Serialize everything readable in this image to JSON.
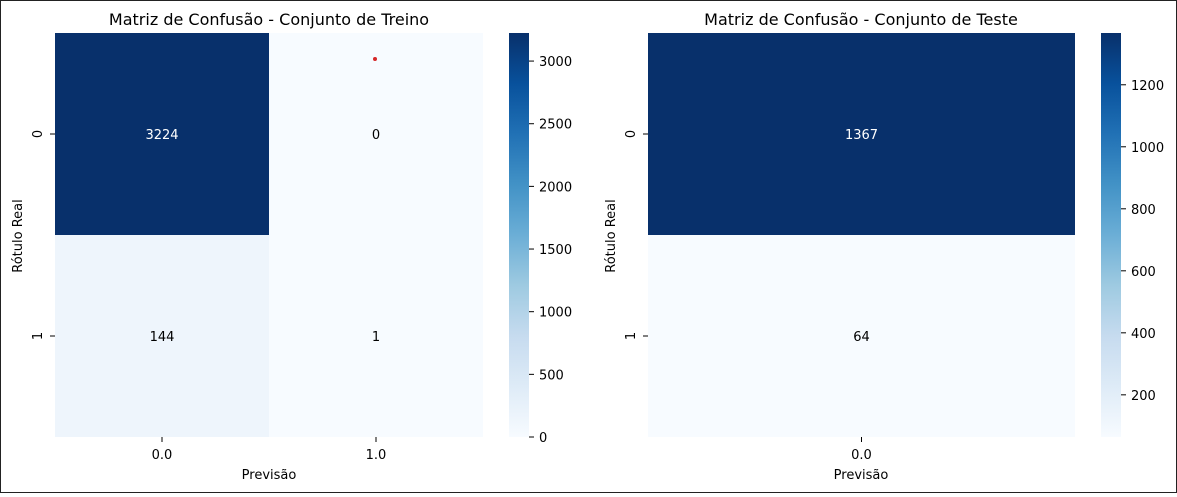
{
  "chart_data": [
    {
      "type": "heatmap",
      "title": "Matriz de Confusão - Conjunto de Treino",
      "xlabel": "Previsão",
      "ylabel": "Rótulo Real",
      "x_categories": [
        "0.0",
        "1.0"
      ],
      "y_categories": [
        "0",
        "1"
      ],
      "values": [
        [
          3224,
          0
        ],
        [
          144,
          1
        ]
      ],
      "cell_labels": [
        [
          "3224",
          "0"
        ],
        [
          "144",
          "1"
        ]
      ],
      "colormap": "Blues",
      "colorbar": {
        "min": 0,
        "max": 3224,
        "ticks": [
          0,
          500,
          1000,
          1500,
          2000,
          2500,
          3000
        ]
      }
    },
    {
      "type": "heatmap",
      "title": "Matriz de Confusão - Conjunto de Teste",
      "xlabel": "Previsão",
      "ylabel": "Rótulo Real",
      "x_categories": [
        "0.0"
      ],
      "y_categories": [
        "0",
        "1"
      ],
      "values": [
        [
          1367
        ],
        [
          64
        ]
      ],
      "cell_labels": [
        [
          "1367"
        ],
        [
          "64"
        ]
      ],
      "colormap": "Blues",
      "colorbar": {
        "min": 64,
        "max": 1367,
        "ticks": [
          200,
          400,
          600,
          800,
          1000,
          1200
        ]
      }
    }
  ],
  "colors": {
    "blues_low": "#f7fbff",
    "blues_high": "#08306b",
    "annotation_marker": "#d62728"
  }
}
